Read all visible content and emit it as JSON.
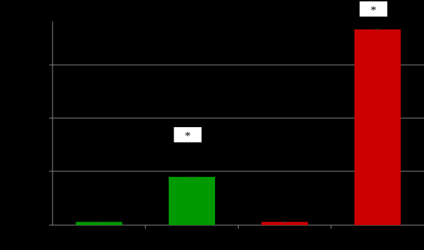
{
  "chart_data": {
    "type": "bar",
    "categories": [
      "",
      "",
      "",
      ""
    ],
    "values": [
      0.06,
      0.9,
      0.06,
      3.65
    ],
    "colors": [
      "#009900",
      "#009900",
      "#cc0000",
      "#cc0000"
    ],
    "ylim": [
      0,
      3.8
    ],
    "grid": true,
    "legend": "none",
    "background": "#000000",
    "annotations": [
      {
        "category_index": 1,
        "text": "*"
      },
      {
        "category_index": 3,
        "text": "*"
      }
    ]
  }
}
